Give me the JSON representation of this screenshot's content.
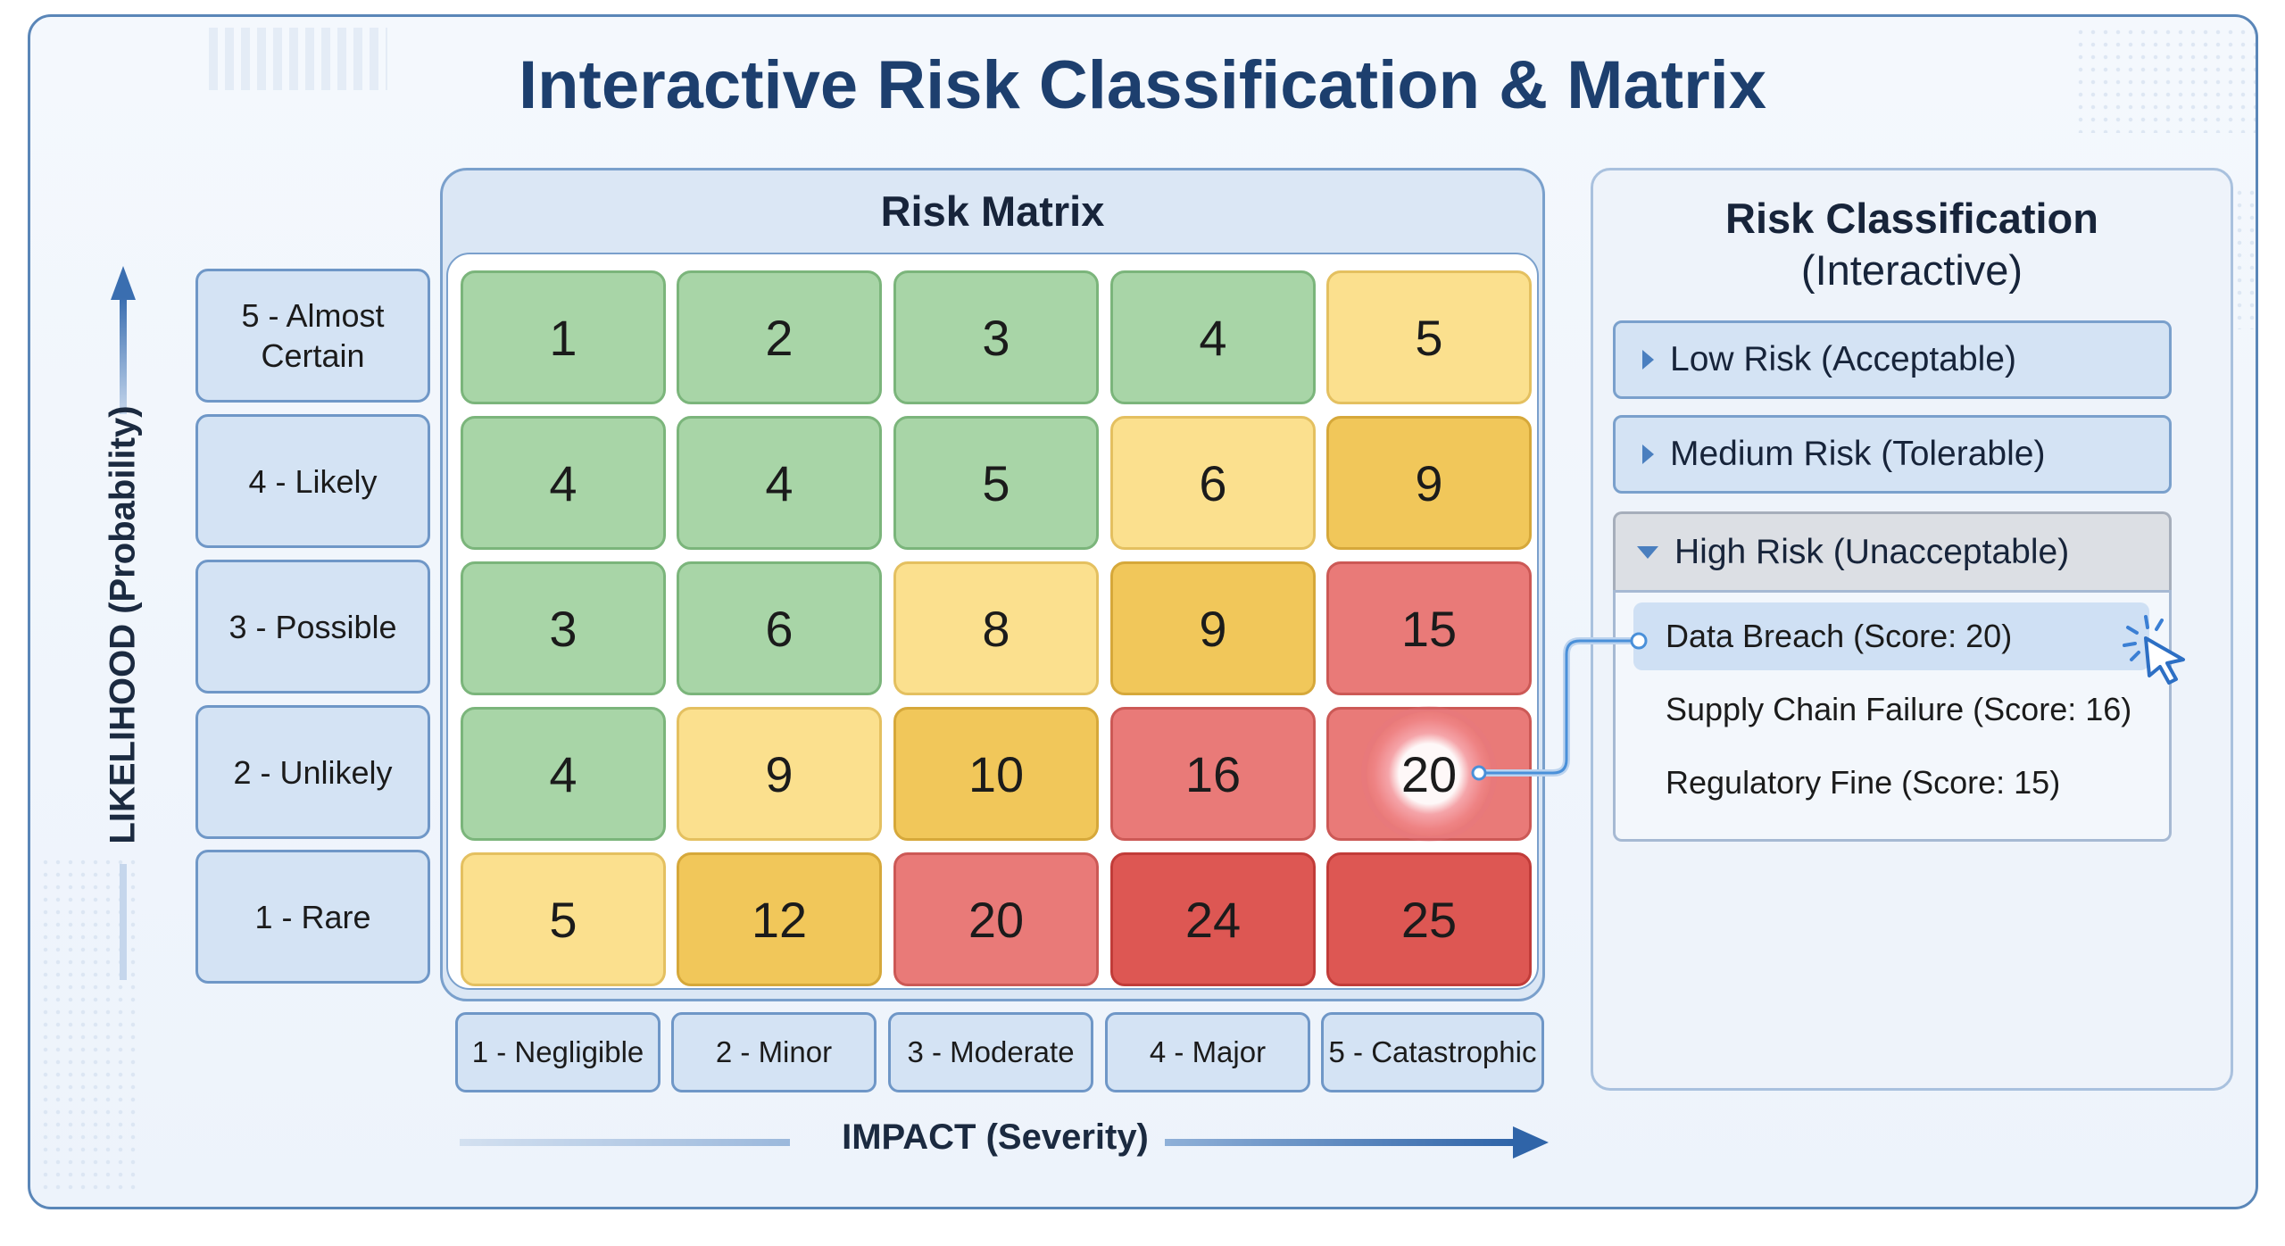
{
  "title": "Interactive Risk Classification & Matrix",
  "matrix": {
    "title": "Risk Matrix",
    "rows": [
      [
        {
          "v": "1",
          "level": "g"
        },
        {
          "v": "2",
          "level": "g"
        },
        {
          "v": "3",
          "level": "g"
        },
        {
          "v": "4",
          "level": "g"
        },
        {
          "v": "5",
          "level": "y"
        }
      ],
      [
        {
          "v": "4",
          "level": "g"
        },
        {
          "v": "4",
          "level": "g"
        },
        {
          "v": "5",
          "level": "g"
        },
        {
          "v": "6",
          "level": "y"
        },
        {
          "v": "9",
          "level": "o"
        }
      ],
      [
        {
          "v": "3",
          "level": "g"
        },
        {
          "v": "6",
          "level": "g"
        },
        {
          "v": "8",
          "level": "y"
        },
        {
          "v": "9",
          "level": "o"
        },
        {
          "v": "15",
          "level": "r"
        }
      ],
      [
        {
          "v": "4",
          "level": "g"
        },
        {
          "v": "9",
          "level": "y"
        },
        {
          "v": "10",
          "level": "o"
        },
        {
          "v": "16",
          "level": "r"
        },
        {
          "v": "20",
          "level": "r",
          "selected": true
        }
      ],
      [
        {
          "v": "5",
          "level": "y"
        },
        {
          "v": "12",
          "level": "o"
        },
        {
          "v": "20",
          "level": "r"
        },
        {
          "v": "24",
          "level": "dr"
        },
        {
          "v": "25",
          "level": "dr"
        }
      ]
    ],
    "likelihood_labels": [
      "5 - Almost Certain",
      "4 - Likely",
      "3 - Possible",
      "2 - Unlikely",
      "1 - Rare"
    ],
    "impact_labels": [
      "1 - Negligible",
      "2 - Minor",
      "3 - Moderate",
      "4 - Major",
      "5 - Catastrophic"
    ],
    "y_axis_label": "LIKELIHOOD (Probability)",
    "x_axis_label": "IMPACT (Severity)"
  },
  "classification": {
    "title": "Risk Classification",
    "subtitle": "(Interactive)",
    "sections": [
      {
        "label": "Low Risk (Acceptable)",
        "expanded": false
      },
      {
        "label": "Medium Risk (Tolerable)",
        "expanded": false
      },
      {
        "label": "High Risk (Unacceptable)",
        "expanded": true
      }
    ],
    "high_risk_items": [
      {
        "label": "Data Breach (Score: 20)",
        "highlighted": true
      },
      {
        "label": "Supply Chain Failure (Score: 16)",
        "highlighted": false
      },
      {
        "label": "Regulatory Fine (Score: 15)",
        "highlighted": false
      }
    ]
  },
  "colors": {
    "title": "#1d3f6e",
    "accent": "#4a7fbf",
    "low": "#a8d5a7",
    "medium_light": "#fbe08e",
    "medium": "#f1c75a",
    "high": "#e97a78",
    "critical": "#dd5753"
  }
}
